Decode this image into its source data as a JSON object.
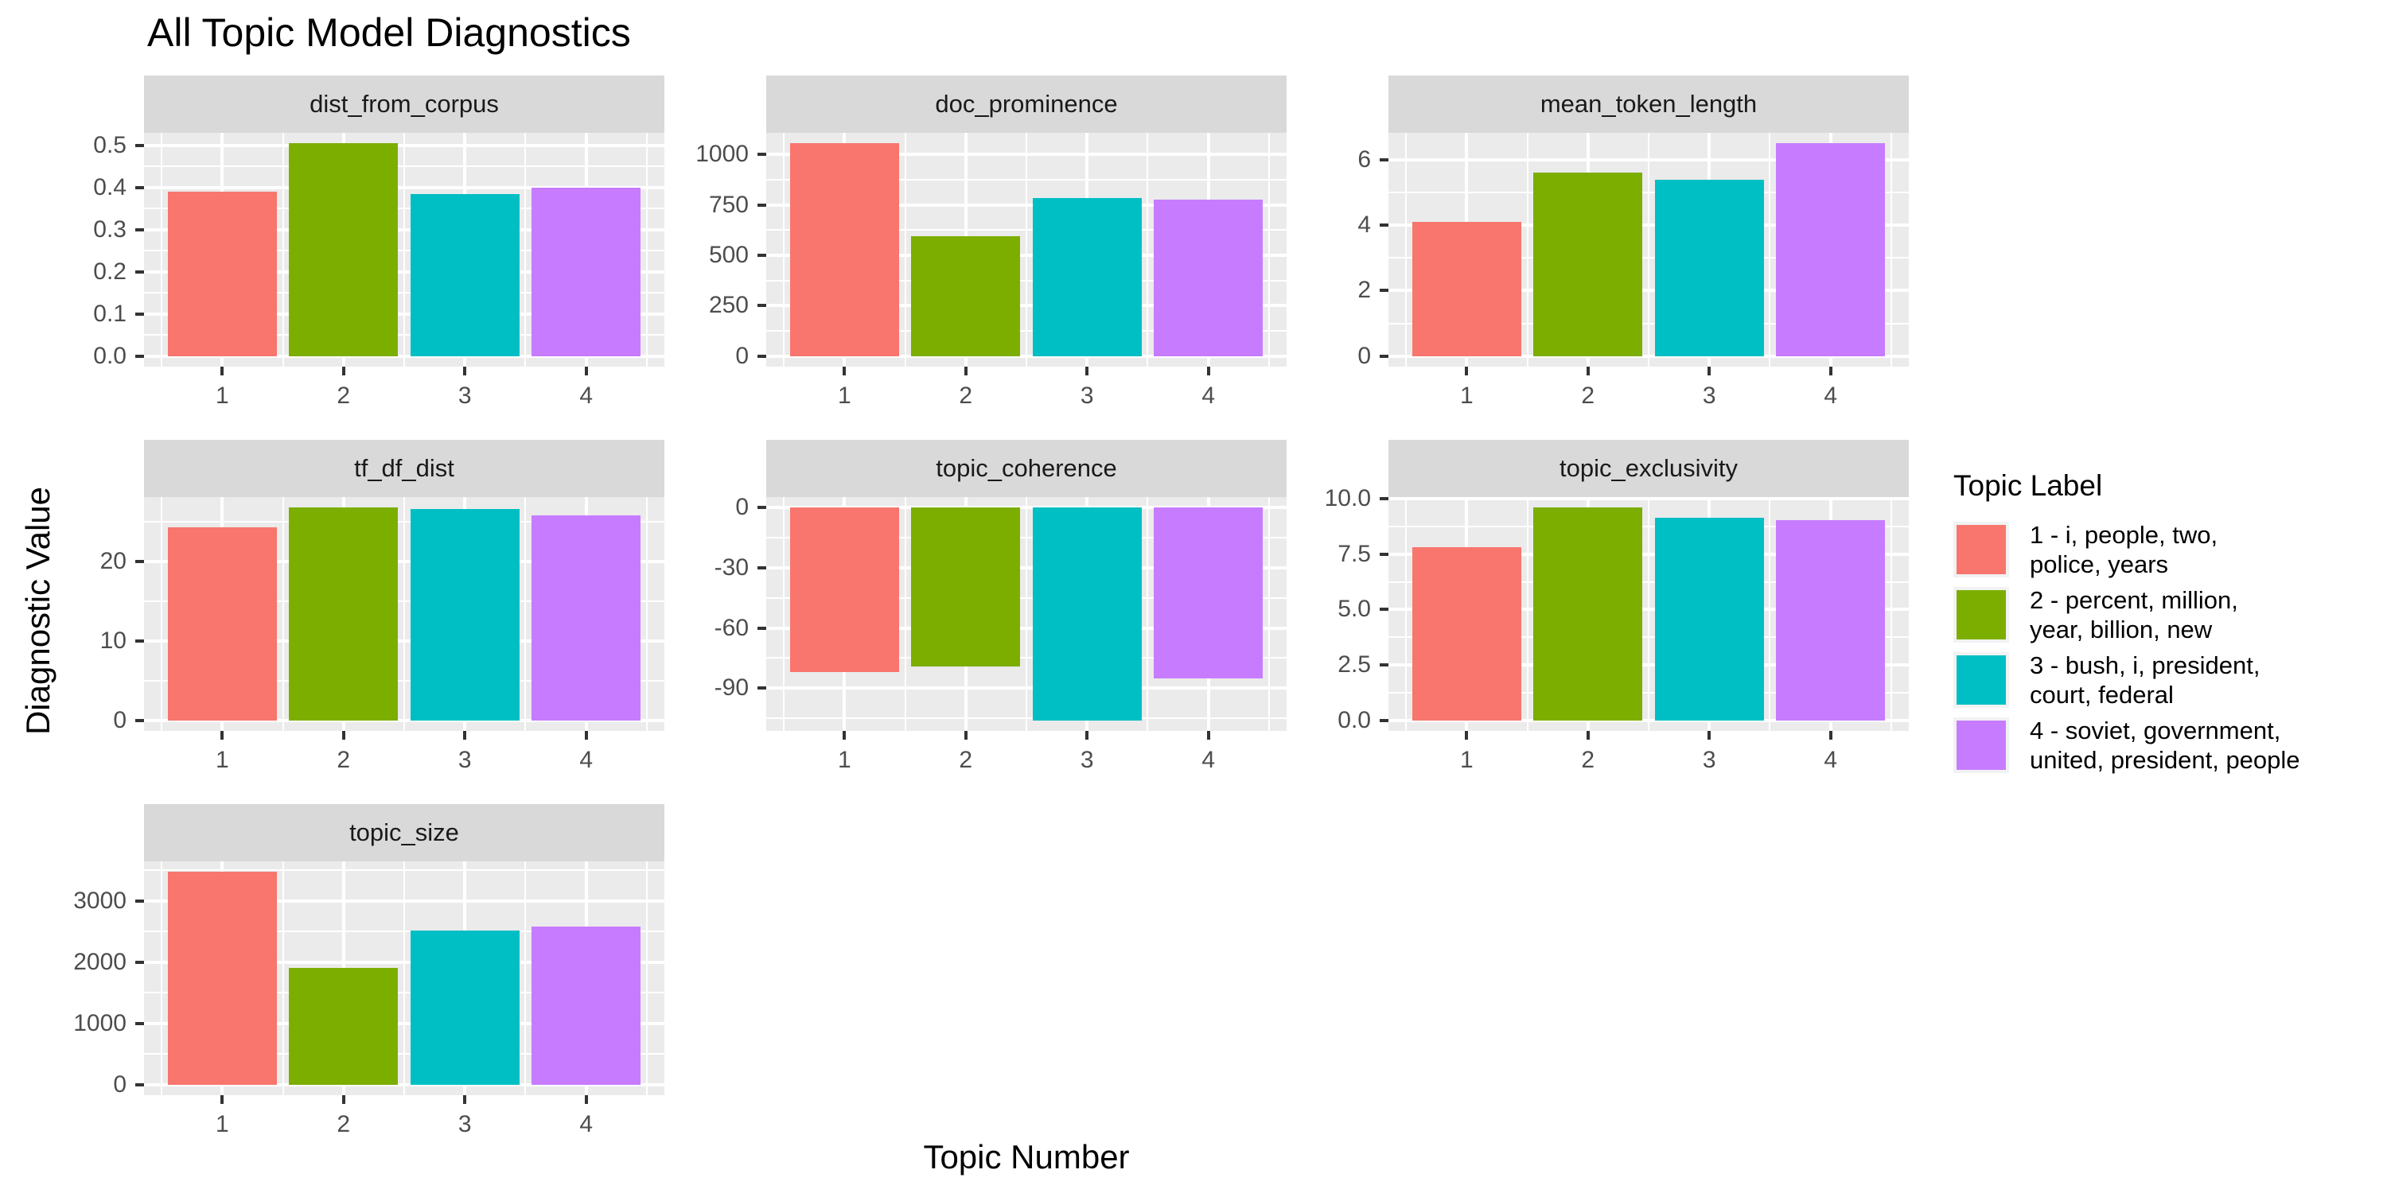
{
  "chart_data": {
    "type": "bar",
    "title": "All Topic Model Diagnostics",
    "xlabel": "Topic Number",
    "ylabel": "Diagnostic Value",
    "x_categories": [
      "1",
      "2",
      "3",
      "4"
    ],
    "palette": [
      "#F8766D",
      "#7CAE00",
      "#00BFC4",
      "#C77CFF"
    ],
    "panel_bg": "#EBEBEB",
    "strip_bg": "#D9D9D9",
    "grid_color": "#FFFFFF",
    "tick_label_color": "#4D4D4D",
    "layout": {
      "grid": "3 columns x 3 rows of facets, legend at right",
      "legend_position": "right"
    },
    "facets": [
      {
        "title": "dist_from_corpus",
        "values": [
          0.39,
          0.505,
          0.385,
          0.4
        ],
        "ylim": [
          -0.0253,
          0.5303
        ],
        "yticks": [
          {
            "v": 0.0,
            "label": "0.0"
          },
          {
            "v": 0.1,
            "label": "0.1"
          },
          {
            "v": 0.2,
            "label": "0.2"
          },
          {
            "v": 0.3,
            "label": "0.3"
          },
          {
            "v": 0.4,
            "label": "0.4"
          },
          {
            "v": 0.5,
            "label": "0.5"
          }
        ]
      },
      {
        "title": "doc_prominence",
        "values": [
          1055,
          595,
          785,
          778
        ],
        "ylim": [
          -52.75,
          1107.75
        ],
        "yticks": [
          {
            "v": 0,
            "label": "0"
          },
          {
            "v": 250,
            "label": "250"
          },
          {
            "v": 500,
            "label": "500"
          },
          {
            "v": 750,
            "label": "750"
          },
          {
            "v": 1000,
            "label": "1000"
          }
        ]
      },
      {
        "title": "mean_token_length",
        "values": [
          4.1,
          5.6,
          5.4,
          6.5
        ],
        "ylim": [
          -0.325,
          6.825
        ],
        "yticks": [
          {
            "v": 0,
            "label": "0"
          },
          {
            "v": 2,
            "label": "2"
          },
          {
            "v": 4,
            "label": "4"
          },
          {
            "v": 6,
            "label": "6"
          }
        ]
      },
      {
        "title": "tf_df_dist",
        "values": [
          24.3,
          26.8,
          26.6,
          25.8
        ],
        "ylim": [
          -1.34,
          28.14
        ],
        "yticks": [
          {
            "v": 0,
            "label": "0"
          },
          {
            "v": 10,
            "label": "10"
          },
          {
            "v": 20,
            "label": "20"
          }
        ]
      },
      {
        "title": "topic_coherence",
        "values": [
          -82,
          -79,
          -106,
          -85
        ],
        "ylim": [
          -111.3,
          5.3
        ],
        "yticks": [
          {
            "v": -90,
            "label": "-90"
          },
          {
            "v": -60,
            "label": "-60"
          },
          {
            "v": -30,
            "label": "-30"
          },
          {
            "v": 0,
            "label": "0"
          }
        ]
      },
      {
        "title": "topic_exclusivity",
        "values": [
          7.8,
          9.6,
          9.15,
          9.05
        ],
        "ylim": [
          -0.48,
          10.08
        ],
        "yticks": [
          {
            "v": 0,
            "label": "0.0"
          },
          {
            "v": 2.5,
            "label": "2.5"
          },
          {
            "v": 5,
            "label": "5.0"
          },
          {
            "v": 7.5,
            "label": "7.5"
          },
          {
            "v": 10,
            "label": "10.0"
          }
        ]
      },
      {
        "title": "topic_size",
        "values": [
          3470,
          1910,
          2510,
          2580
        ],
        "ylim": [
          -173.5,
          3643.5
        ],
        "yticks": [
          {
            "v": 0,
            "label": "0"
          },
          {
            "v": 1000,
            "label": "1000"
          },
          {
            "v": 2000,
            "label": "2000"
          },
          {
            "v": 3000,
            "label": "3000"
          }
        ]
      }
    ],
    "legend": {
      "title": "Topic Label",
      "entries": [
        {
          "color": "#F8766D",
          "lines": [
            "1 - i, people, two,",
            "police, years"
          ]
        },
        {
          "color": "#7CAE00",
          "lines": [
            "2 - percent, million,",
            "year, billion, new"
          ]
        },
        {
          "color": "#00BFC4",
          "lines": [
            "3 - bush, i, president,",
            "court, federal"
          ]
        },
        {
          "color": "#C77CFF",
          "lines": [
            "4 - soviet, government,",
            "united, president, people"
          ]
        }
      ]
    }
  }
}
